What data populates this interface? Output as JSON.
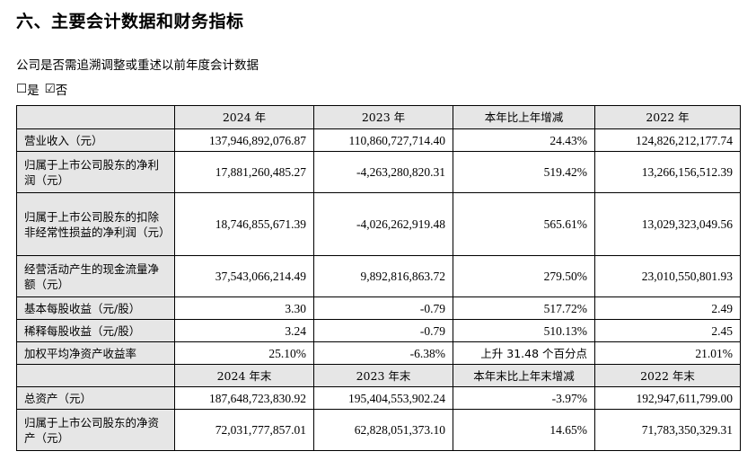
{
  "heading": "六、主要会计数据和财务指标",
  "question": "公司是否需追溯调整或重述以前年度会计数据",
  "options": {
    "yes_box": "☐",
    "yes_label": "是",
    "no_box": "☑",
    "no_label": "否"
  },
  "table": {
    "header1": [
      "",
      "2024 年",
      "2023 年",
      "本年比上年增减",
      "2022 年"
    ],
    "header2": [
      "",
      "2024 年末",
      "2023 年末",
      "本年末比上年末增减",
      "2022 年末"
    ],
    "rows1": [
      {
        "label": "营业收入（元）",
        "values": [
          "137,946,892,076.87",
          "110,860,727,714.40",
          "24.43%",
          "124,826,212,177.74"
        ]
      },
      {
        "label": "归属于上市公司股东的净利润（元）",
        "values": [
          "17,881,260,485.27",
          "-4,263,280,820.31",
          "519.42%",
          "13,266,156,512.39"
        ]
      },
      {
        "label": "归属于上市公司股东的扣除非经常性损益的净利润（元）",
        "values": [
          "18,746,855,671.39",
          "-4,026,262,919.48",
          "565.61%",
          "13,029,323,049.56"
        ]
      },
      {
        "label": "经营活动产生的现金流量净额（元）",
        "values": [
          "37,543,066,214.49",
          "9,892,816,863.72",
          "279.50%",
          "23,010,550,801.93"
        ]
      },
      {
        "label": "基本每股收益（元/股）",
        "values": [
          "3.30",
          "-0.79",
          "517.72%",
          "2.49"
        ]
      },
      {
        "label": "稀释每股收益（元/股）",
        "values": [
          "3.24",
          "-0.79",
          "510.13%",
          "2.45"
        ]
      },
      {
        "label": "加权平均净资产收益率",
        "values": [
          "25.10%",
          "-6.38%",
          "上升 31.48 个百分点",
          "21.01%"
        ]
      }
    ],
    "rows2": [
      {
        "label": "总资产（元）",
        "values": [
          "187,648,723,830.92",
          "195,404,553,902.24",
          "-3.97%",
          "192,947,611,799.00"
        ]
      },
      {
        "label": "归属于上市公司股东的净资产（元）",
        "values": [
          "72,031,777,857.01",
          "62,828,051,373.10",
          "14.65%",
          "71,783,350,329.31"
        ]
      }
    ]
  }
}
